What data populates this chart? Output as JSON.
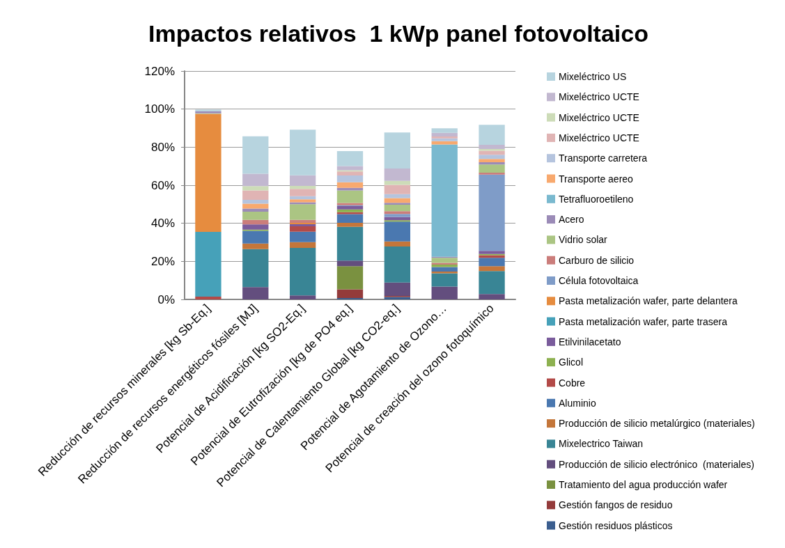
{
  "chart_data": {
    "type": "bar",
    "stacked": true,
    "title": "Impactos relativos  1 kWp panel fotovoltaico",
    "categories": [
      "Reducción de recursos minerales [kg Sb-Eq.]",
      "Reducción de recursos energéticos fósiles [MJ]",
      "Potencial de Acidificación [kg SO2-Eq.]",
      "Potencial de Eutrofización [kg de PO4 eq.]",
      "Potencial de Calentamiento Global [kg CO2-eq.]",
      "Potencial de Agotamiento de Ozono…",
      "Potencial de creación del ozono fotoquímico"
    ],
    "ylim": [
      0,
      120
    ],
    "yticks": [
      {
        "value": 0,
        "label": "0%"
      },
      {
        "value": 20,
        "label": "20%"
      },
      {
        "value": 40,
        "label": "40%"
      },
      {
        "value": 60,
        "label": "60%"
      },
      {
        "value": 80,
        "label": "80%"
      },
      {
        "value": 100,
        "label": "100%"
      },
      {
        "value": 120,
        "label": "120%"
      }
    ],
    "grid": "y",
    "legend": "right",
    "series": [
      {
        "name": "Gestión residuos plásticos",
        "color": "#3b5e8f",
        "values": [
          null,
          null,
          null,
          0.7,
          1.3,
          null,
          null
        ]
      },
      {
        "name": "Gestión fangos de residuo",
        "color": "#943b3b",
        "values": [
          null,
          null,
          null,
          4.6,
          0.5,
          null,
          null
        ]
      },
      {
        "name": "Tratamiento del agua producción wafer",
        "color": "#7a9140",
        "values": [
          null,
          null,
          null,
          12.2,
          null,
          null,
          null
        ]
      },
      {
        "name": "Producción de silicio electrónico  (materiales)",
        "color": "#634e7e",
        "values": [
          null,
          6.5,
          2.1,
          2.9,
          7.1,
          6.8,
          2.8
        ]
      },
      {
        "name": "Mixelectrico Taiwan",
        "color": "#398595",
        "values": [
          null,
          19.9,
          25.0,
          17.7,
          18.9,
          6.9,
          12.1
        ]
      },
      {
        "name": "Producción de silicio metalúrgico (materiales)",
        "color": "#c4763a",
        "values": [
          null,
          3.0,
          3.0,
          2.1,
          2.7,
          0.9,
          2.6
        ]
      },
      {
        "name": "Aluminio",
        "color": "#4a78b0",
        "values": [
          null,
          6.6,
          5.5,
          4.6,
          10.4,
          2.4,
          4.4
        ]
      },
      {
        "name": "Cobre",
        "color": "#b34a48",
        "values": [
          1.5,
          null,
          2.8,
          1.0,
          null,
          null,
          1.3
        ]
      },
      {
        "name": "Glicol",
        "color": "#8db150",
        "values": [
          null,
          0.7,
          null,
          1.5,
          0.7,
          1.3,
          0.7
        ]
      },
      {
        "name": "Etilvinilacetato",
        "color": "#7a5c9c",
        "values": [
          null,
          2.7,
          1.1,
          1.7,
          1.7,
          null,
          1.6
        ]
      },
      {
        "name": "Pasta metalización wafer, parte trasera",
        "color": "#46a1b9",
        "values": [
          34,
          null,
          null,
          null,
          null,
          null,
          null
        ]
      },
      {
        "name": "Pasta metalización wafer, parte delantera",
        "color": "#e68c3f",
        "values": [
          62,
          null,
          0.7,
          null,
          null,
          null,
          null
        ]
      },
      {
        "name": "Célula fotovoltaica",
        "color": "#7f9cc8",
        "values": [
          null,
          null,
          null,
          0.5,
          1.6,
          null,
          40.1
        ]
      },
      {
        "name": "Carburo de silicio",
        "color": "#cb7d7b",
        "values": [
          null,
          2.4,
          1.6,
          1.2,
          1.5,
          0.9,
          1.0
        ]
      },
      {
        "name": "Vidrio solar",
        "color": "#abc583",
        "values": [
          0.3,
          4.3,
          8.2,
          6.6,
          3.4,
          2.7,
          4.3
        ]
      },
      {
        "name": "Acero",
        "color": "#9b8bb7",
        "values": [
          1.0,
          1.6,
          1.0,
          1.3,
          1.0,
          0.5,
          1.2
        ]
      },
      {
        "name": "Tetrafluoroetileno",
        "color": "#7ab9cf",
        "values": [
          null,
          null,
          null,
          null,
          null,
          59.0,
          null
        ]
      },
      {
        "name": "Transporte aereo",
        "color": "#f8a96e",
        "values": [
          null,
          2.6,
          1.6,
          3.0,
          2.4,
          1.7,
          1.7
        ]
      },
      {
        "name": "Transporte carretera",
        "color": "#b5c4de",
        "values": [
          null,
          2.0,
          1.6,
          3.5,
          2.1,
          1.5,
          2.2
        ]
      },
      {
        "name": "Mixeléctrico UCTE",
        "color": "#e0b4b4",
        "values": [
          null,
          5.0,
          3.9,
          2.1,
          4.9,
          1.0,
          2.1
        ]
      },
      {
        "name": "Mixeléctrico UCTE",
        "color": "#cddcb8",
        "values": [
          null,
          2.2,
          1.5,
          0.7,
          2.1,
          null,
          0.9
        ]
      },
      {
        "name": "Mixeléctrico UCTE",
        "color": "#c2b8d0",
        "values": [
          null,
          6.5,
          5.6,
          2.2,
          6.5,
          1.9,
          2.2
        ]
      },
      {
        "name": "Mixeléctrico US",
        "color": "#b7d4df",
        "values": [
          0.9,
          19.7,
          24.0,
          7.8,
          18.9,
          2.4,
          10.5
        ]
      }
    ]
  }
}
